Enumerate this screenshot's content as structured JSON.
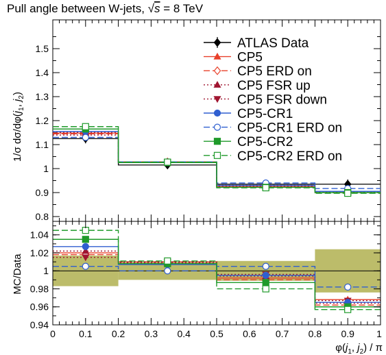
{
  "chart_data": [
    {
      "type": "line",
      "plot_style": "histogram-steps",
      "title": "Pull angle between W-jets, √s = 8 TeV",
      "title_parts": {
        "before": "Pull angle between W-jets, ",
        "sqrt_symbol": "√",
        "s": "s",
        "after": " = 8 TeV"
      },
      "ylabel": "1/σ dσ/dφ(j1, j2)",
      "ylabel_parts": {
        "prefix": "1/σ dσ/dφ(",
        "j": "j",
        "sub1": "1",
        "sep": ", ",
        "sub2": "2",
        "close": ")"
      },
      "xlabel": "φ(j1, j2) / π",
      "ylim": [
        0.78,
        1.62
      ],
      "xlim": [
        0,
        1
      ],
      "bin_edges": [
        0,
        0.2,
        0.5,
        0.8,
        1.0
      ],
      "yticks": [
        "0.8",
        "0.9",
        "1",
        "1.1",
        "1.2",
        "1.3",
        "1.4",
        "1.5"
      ],
      "ytick_values": [
        0.8,
        0.9,
        1.0,
        1.1,
        1.2,
        1.3,
        1.4,
        1.5
      ],
      "legend_placement": "top-right",
      "series": [
        {
          "name": "ATLAS Data",
          "color": "#000000",
          "marker": "diamond-filled",
          "dash": "solid",
          "values": [
            1.125,
            1.015,
            0.935,
            0.935
          ],
          "errors": [
            0.02,
            0.01,
            0.01,
            0.02
          ]
        },
        {
          "name": "CP5",
          "color": "#e8402a",
          "marker": "triangle-up-filled",
          "dash": "solid",
          "values": [
            1.148,
            1.025,
            0.925,
            0.905
          ]
        },
        {
          "name": "CP5 ERD on",
          "color": "#e8402a",
          "marker": "diamond-open",
          "dash": "dashed",
          "values": [
            1.145,
            1.028,
            0.925,
            0.9
          ]
        },
        {
          "name": "CP5 FSR up",
          "color": "#a01530",
          "marker": "triangle-up-filled",
          "dash": "dotted",
          "values": [
            1.15,
            1.026,
            0.927,
            0.902
          ]
        },
        {
          "name": "CP5 FSR down",
          "color": "#a01530",
          "marker": "triangle-down-filled",
          "dash": "dotted",
          "values": [
            1.14,
            1.027,
            0.93,
            0.905
          ]
        },
        {
          "name": "CP5-CR1",
          "color": "#2f5fd0",
          "marker": "circle-filled",
          "dash": "solid",
          "values": [
            1.155,
            1.025,
            0.93,
            0.905
          ]
        },
        {
          "name": "CP5-CR1 ERD on",
          "color": "#2f5fd0",
          "marker": "circle-open",
          "dash": "dashed",
          "values": [
            1.13,
            1.028,
            0.94,
            0.917
          ]
        },
        {
          "name": "CP5-CR2",
          "color": "#1f9a2a",
          "marker": "square-filled",
          "dash": "solid",
          "values": [
            1.165,
            1.025,
            0.922,
            0.9
          ]
        },
        {
          "name": "CP5-CR2 ERD on",
          "color": "#1f9a2a",
          "marker": "square-open",
          "dash": "dashed",
          "values": [
            1.175,
            1.027,
            0.92,
            0.897
          ]
        }
      ]
    },
    {
      "type": "line",
      "plot_style": "ratio-steps",
      "ylabel": "MC/Data",
      "xlabel": "φ(j1, j2) / π",
      "ylim": [
        0.94,
        1.055
      ],
      "xlim": [
        0,
        1
      ],
      "bin_edges": [
        0,
        0.2,
        0.5,
        0.8,
        1.0
      ],
      "xticks": [
        "0",
        "0.1",
        "0.2",
        "0.3",
        "0.4",
        "0.5",
        "0.6",
        "0.7",
        "0.8",
        "0.9",
        "1"
      ],
      "xtick_values": [
        0,
        0.1,
        0.2,
        0.3,
        0.4,
        0.5,
        0.6,
        0.7,
        0.8,
        0.9,
        1.0
      ],
      "yticks": [
        "0.94",
        "0.96",
        "0.98",
        "1",
        "1.02",
        "1.04"
      ],
      "ytick_values": [
        0.94,
        0.96,
        0.98,
        1.0,
        1.02,
        1.04
      ],
      "uncertainty_band": {
        "color": "#b5b55a",
        "half_widths": [
          0.017,
          0.01,
          0.011,
          0.024
        ]
      },
      "series": [
        {
          "name": "CP5",
          "values": [
            1.02,
            1.008,
            0.992,
            0.968
          ]
        },
        {
          "name": "CP5 ERD on",
          "values": [
            1.018,
            1.01,
            0.99,
            0.962
          ]
        },
        {
          "name": "CP5 FSR up",
          "values": [
            1.022,
            1.009,
            0.994,
            0.964
          ]
        },
        {
          "name": "CP5 FSR down",
          "values": [
            1.015,
            1.01,
            0.996,
            0.967
          ]
        },
        {
          "name": "CP5-CR1",
          "values": [
            1.027,
            1.007,
            0.995,
            0.965
          ]
        },
        {
          "name": "CP5-CR1 ERD on",
          "values": [
            1.005,
            1.0,
            1.005,
            0.982
          ]
        },
        {
          "name": "CP5-CR2",
          "values": [
            1.035,
            1.008,
            0.987,
            0.96
          ]
        },
        {
          "name": "CP5-CR2 ERD on",
          "values": [
            1.045,
            1.011,
            0.98,
            0.957
          ]
        }
      ]
    }
  ]
}
